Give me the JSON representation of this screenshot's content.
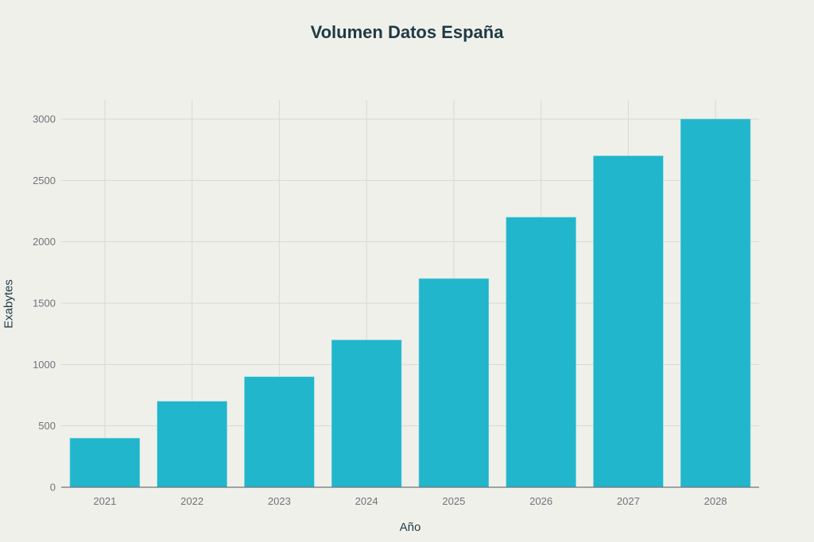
{
  "chart_data": {
    "type": "bar",
    "title": "Volumen Datos España",
    "xlabel": "Año",
    "ylabel": "Exabytes",
    "categories": [
      "2021",
      "2022",
      "2023",
      "2024",
      "2025",
      "2026",
      "2027",
      "2028"
    ],
    "values": [
      400,
      700,
      900,
      1200,
      1700,
      2200,
      2700,
      3000
    ],
    "ylim": [
      0,
      3150
    ],
    "yticks": [
      0,
      500,
      1000,
      1500,
      2000,
      2500,
      3000
    ],
    "grid": true,
    "legend": "none",
    "bar_color": "#21b6cb"
  },
  "colors": {
    "background": "#f0f0eb",
    "bar": "#21b6cb",
    "grid": "#d9d9d4",
    "axis": "#6f7378",
    "title": "#1f3a44"
  }
}
